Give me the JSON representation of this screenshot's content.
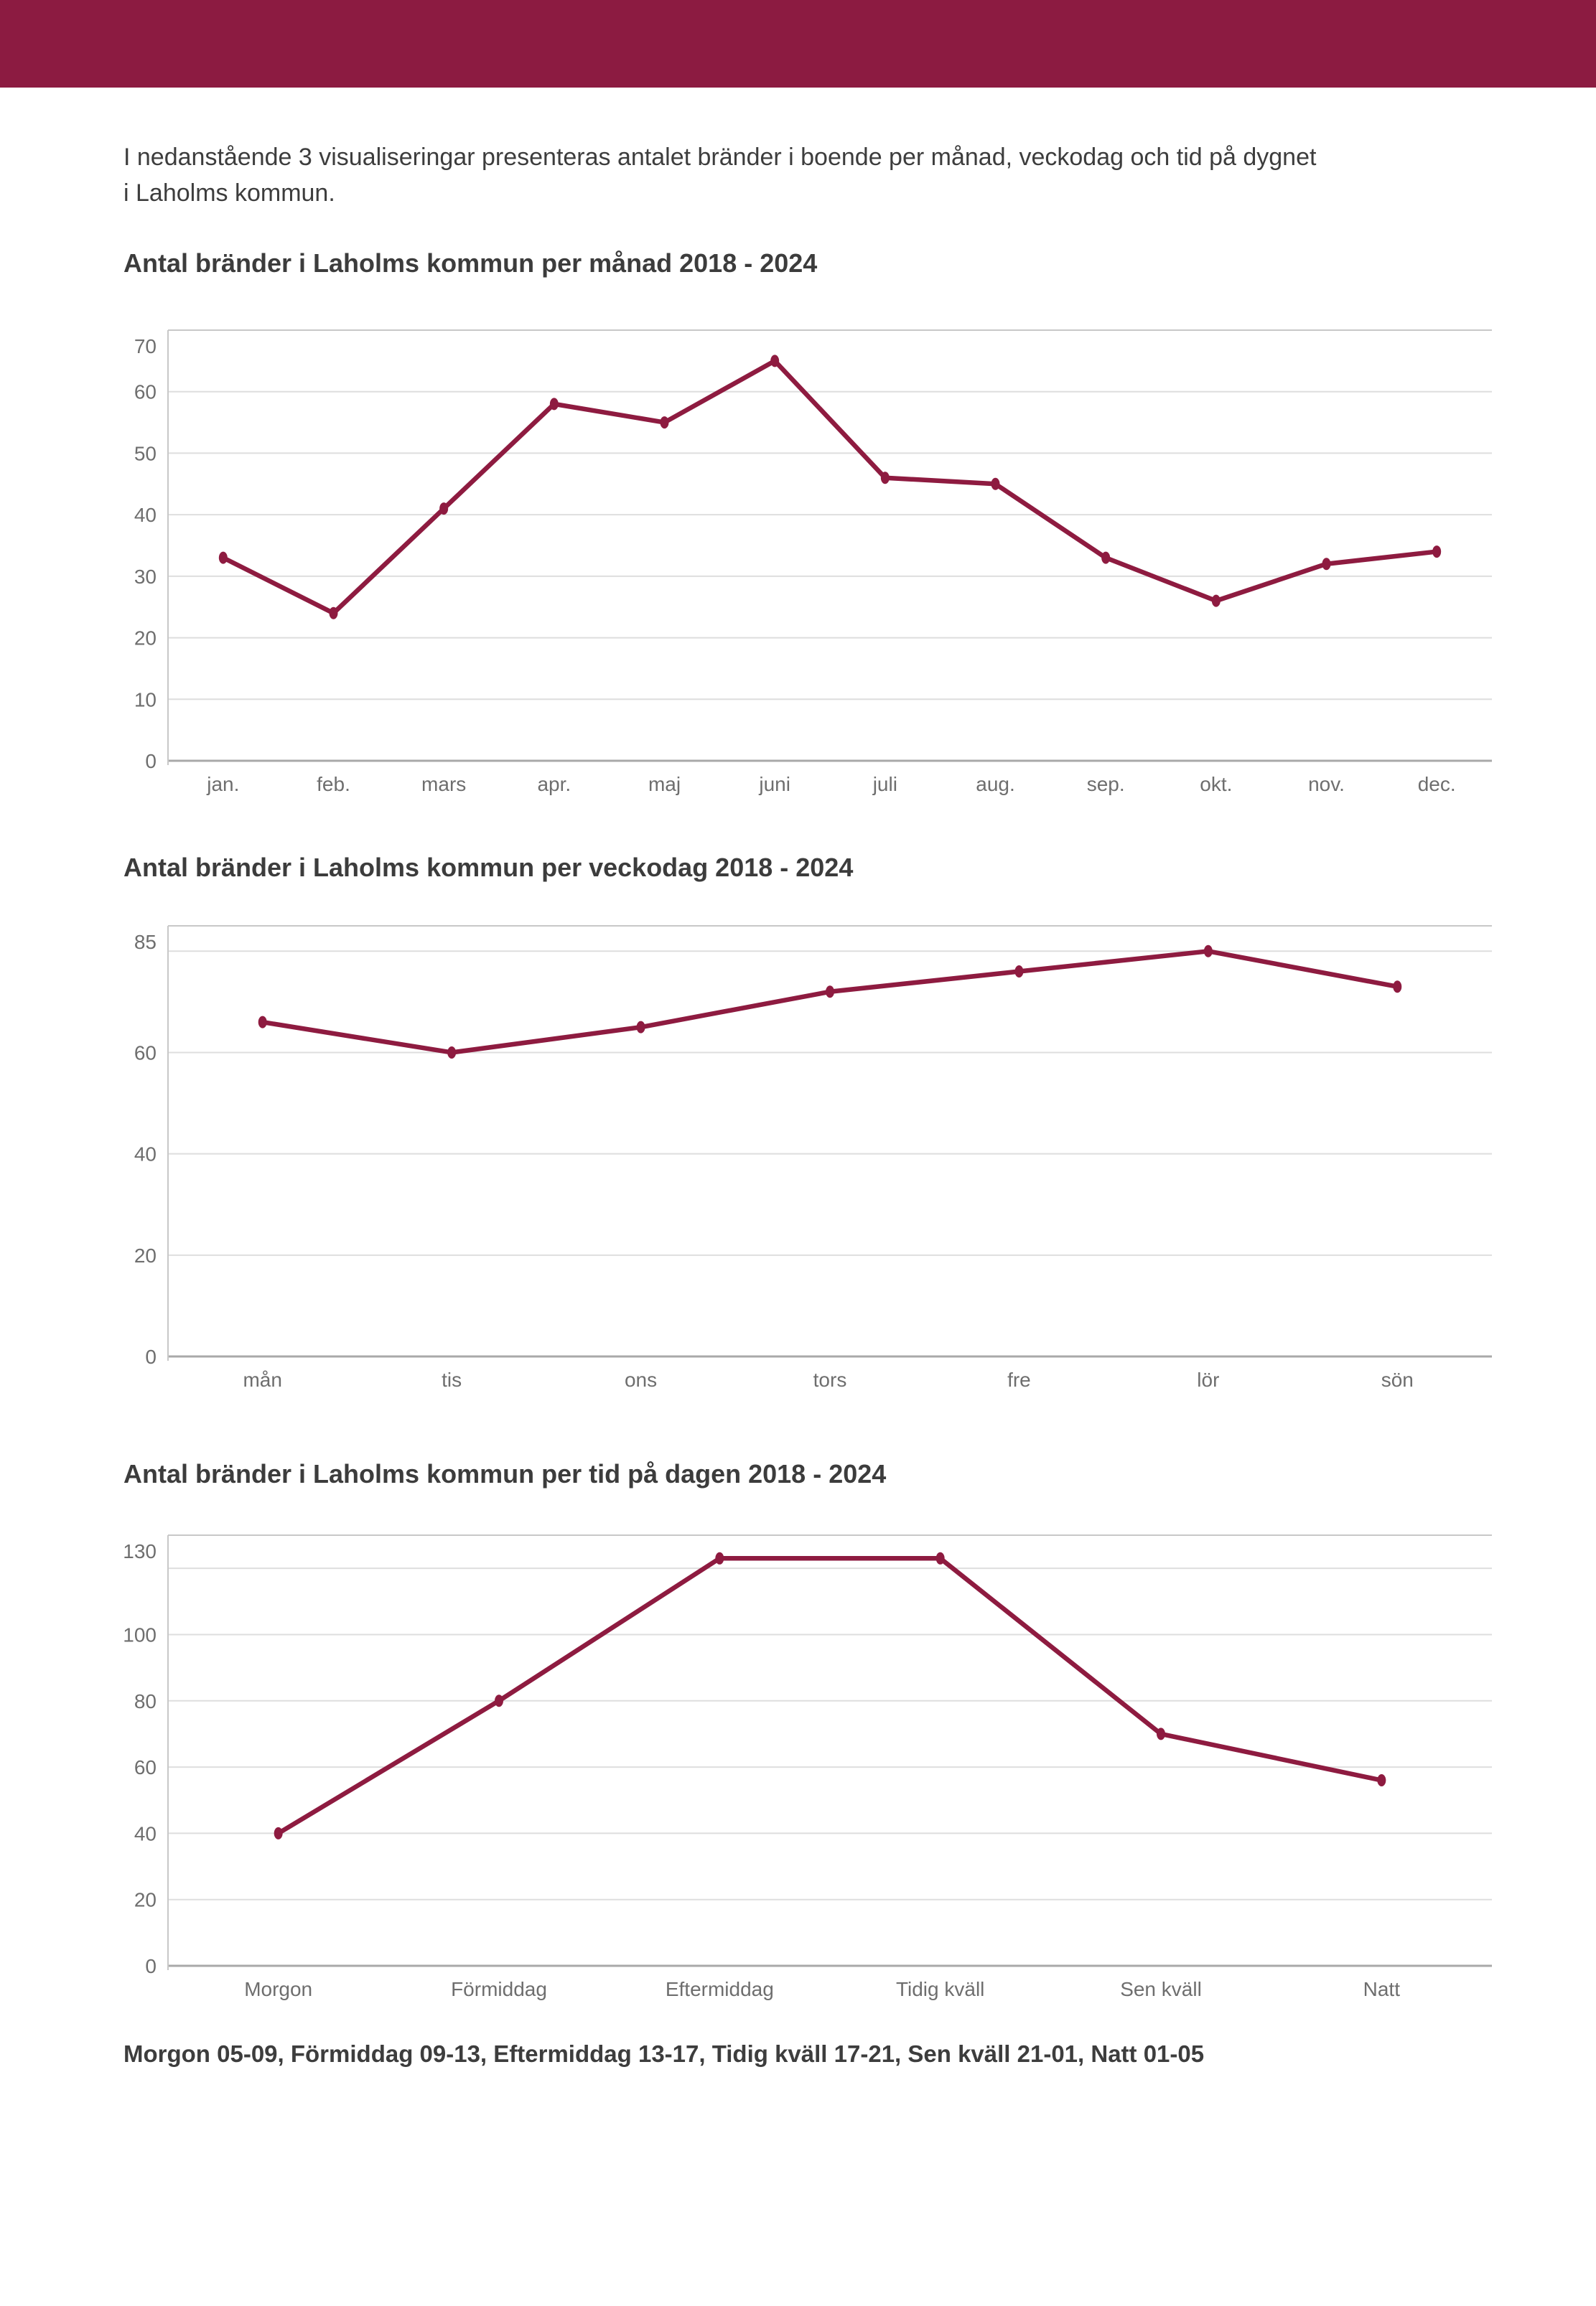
{
  "page": {
    "intro_line1": "I nedanstående 3 visualiseringar presenteras antalet bränder i boende per månad, veckodag och tid på dygnet",
    "intro_line2": "i Laholms kommun.",
    "footnote": "Morgon 05-09, Förmiddag 09-13, Eftermiddag 13-17, Tidig kväll 17-21, Sen kväll 21-01, Natt 01-05"
  },
  "colors": {
    "header_band": "#8c1b41",
    "series_line": "#8e1b40",
    "gridline": "#dedede",
    "axis_frame": "#c8c8c8",
    "zero_line": "#a9a9a9",
    "text": "#3c3c3c",
    "axis_label": "#6e6e6e"
  },
  "chart_data": [
    {
      "type": "line",
      "title": "Antal bränder i Laholms kommun per månad 2018 - 2024",
      "categories": [
        "jan.",
        "feb.",
        "mars",
        "apr.",
        "maj",
        "juni",
        "juli",
        "aug.",
        "sep.",
        "okt.",
        "nov.",
        "dec."
      ],
      "values": [
        33,
        24,
        41,
        58,
        55,
        65,
        46,
        45,
        33,
        26,
        32,
        34
      ],
      "xlabel": "",
      "ylabel": "",
      "ylim": [
        0,
        70
      ],
      "gridlines": [
        70,
        60,
        50,
        40,
        30,
        20,
        10,
        0
      ],
      "ytick_labels": [
        70,
        60,
        50,
        40,
        30,
        20,
        10,
        0
      ],
      "legend": "none",
      "grid": "on"
    },
    {
      "type": "line",
      "title": "Antal bränder i Laholms kommun per veckodag 2018 - 2024",
      "categories": [
        "mån",
        "tis",
        "ons",
        "tors",
        "fre",
        "lör",
        "sön"
      ],
      "values": [
        66,
        60,
        65,
        72,
        76,
        80,
        73
      ],
      "xlabel": "",
      "ylabel": "",
      "ylim": [
        0,
        85
      ],
      "gridlines": [
        85,
        80,
        60,
        40,
        20,
        0
      ],
      "ytick_labels": [
        85,
        60,
        40,
        20,
        0
      ],
      "legend": "none",
      "grid": "on"
    },
    {
      "type": "line",
      "title": "Antal bränder i Laholms kommun per tid på dagen 2018 - 2024",
      "categories": [
        "Morgon",
        "Förmiddag",
        "Eftermiddag",
        "Tidig kväll",
        "Sen kväll",
        "Natt"
      ],
      "values": [
        40,
        80,
        123,
        123,
        70,
        56
      ],
      "xlabel": "",
      "ylabel": "",
      "ylim": [
        0,
        130
      ],
      "gridlines": [
        130,
        120,
        100,
        80,
        60,
        40,
        20,
        0
      ],
      "ytick_labels": [
        130,
        100,
        80,
        60,
        40,
        20,
        0
      ],
      "legend": "none",
      "grid": "on"
    }
  ]
}
